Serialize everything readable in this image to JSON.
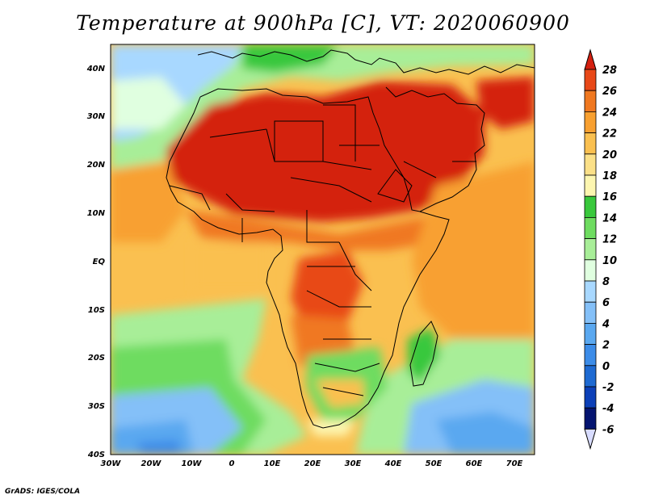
{
  "title": "Temperature at 900hPa [C], VT: 2020060900",
  "credit": "GrADS: IGES/COLA",
  "lat_labels": [
    "40N",
    "30N",
    "20N",
    "10N",
    "EQ",
    "10S",
    "20S",
    "30S",
    "40S"
  ],
  "lon_labels": [
    "30W",
    "20W",
    "10W",
    "0",
    "10E",
    "20E",
    "30E",
    "40E",
    "50E",
    "60E",
    "70E"
  ],
  "colorbar": {
    "ticks": [
      "28",
      "26",
      "24",
      "22",
      "20",
      "18",
      "16",
      "14",
      "12",
      "10",
      "8",
      "6",
      "4",
      "2",
      "0",
      "-2",
      "-4",
      "-6"
    ],
    "colors": [
      "#d42010",
      "#e84818",
      "#f07820",
      "#f8a030",
      "#fac050",
      "#fbe088",
      "#fdf6b0",
      "#39c83c",
      "#6edc60",
      "#a8ee98",
      "#e0ffe0",
      "#a8d8ff",
      "#84c0f8",
      "#5aa8f0",
      "#3c8ce8",
      "#1e6ad2",
      "#0c40b8",
      "#041470"
    ],
    "over_color": "#d42010",
    "under_color": "#d8dcff"
  },
  "field": {
    "type": "filled-contour",
    "variable": "temperature",
    "level": "900hPa",
    "units": "C",
    "domain_lat": [
      -40,
      45
    ],
    "domain_lon": [
      -30,
      75
    ]
  }
}
